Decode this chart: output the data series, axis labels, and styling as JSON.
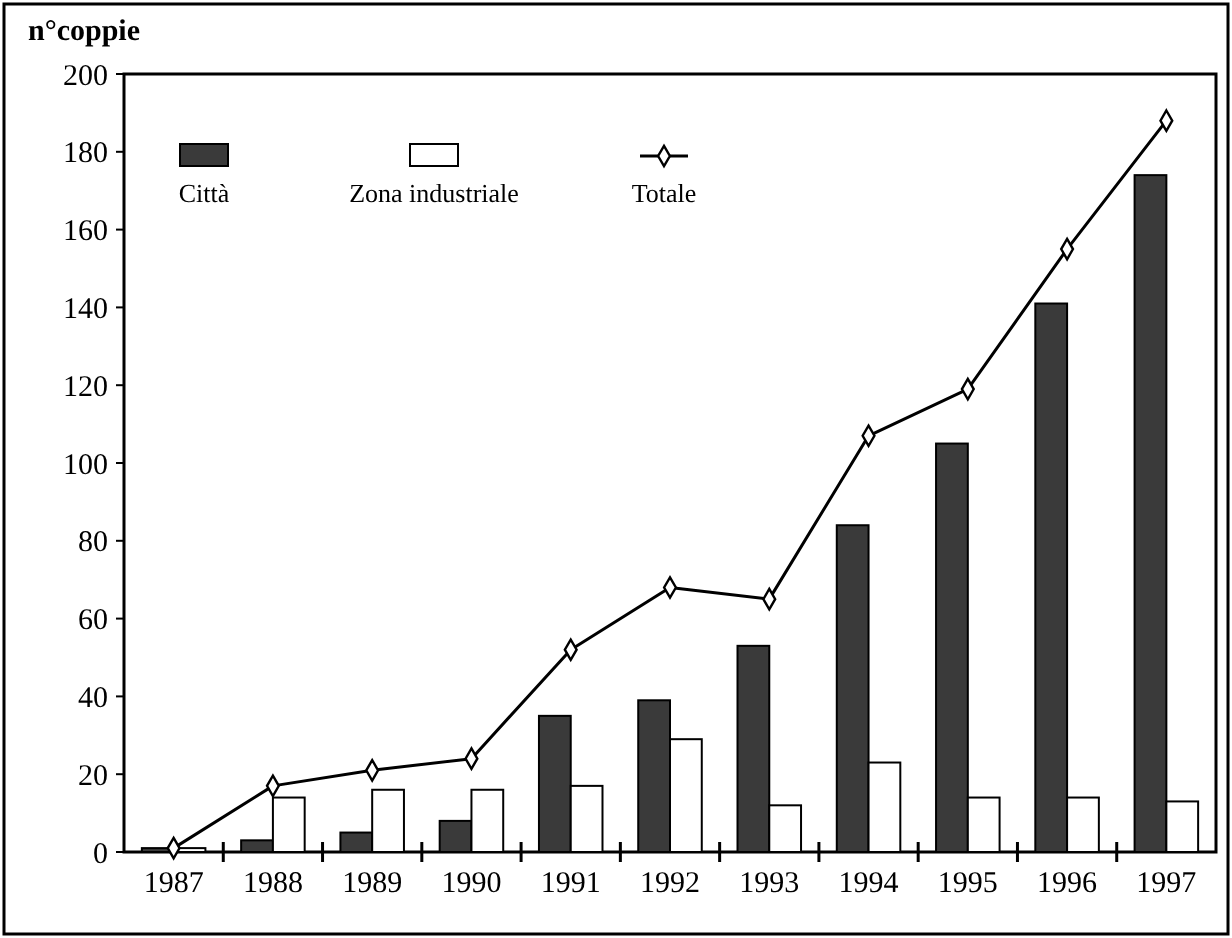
{
  "chart_data": {
    "type": "bar",
    "ylabel": "n°coppie",
    "categories": [
      "1987",
      "1988",
      "1989",
      "1990",
      "1991",
      "1992",
      "1993",
      "1994",
      "1995",
      "1996",
      "1997"
    ],
    "series": [
      {
        "name": "Città",
        "color": "#3a3a3a",
        "values": [
          1,
          3,
          5,
          8,
          35,
          39,
          53,
          84,
          105,
          141,
          174
        ]
      },
      {
        "name": "Zona industriale",
        "color": "#ffffff",
        "values": [
          1,
          14,
          16,
          16,
          17,
          29,
          12,
          23,
          14,
          14,
          13
        ]
      },
      {
        "name": "Totale",
        "type": "line",
        "color": "#000000",
        "marker": "diamond",
        "values": [
          1,
          17,
          21,
          24,
          52,
          68,
          65,
          107,
          119,
          155,
          188
        ]
      }
    ],
    "ylim": [
      0,
      200
    ],
    "yticks": [
      0,
      20,
      40,
      60,
      80,
      100,
      120,
      140,
      160,
      180,
      200
    ],
    "grid": false,
    "legend": "top left"
  }
}
